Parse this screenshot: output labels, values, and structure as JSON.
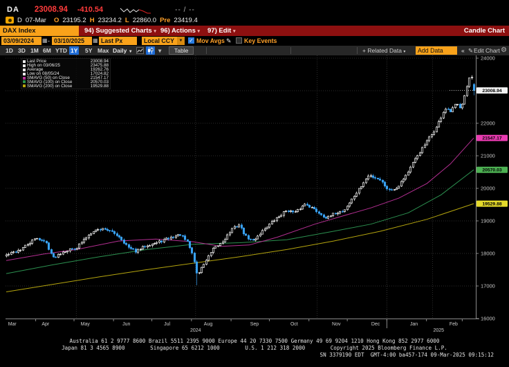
{
  "titlebar": {
    "ticker": "DA",
    "price": "23008.94",
    "change": "-410.54",
    "range": "-- / --"
  },
  "quote_line": {
    "session": "D",
    "date": "07-Mar",
    "open_label": "O",
    "open": "23195.2",
    "high_label": "H",
    "high": "23234.2",
    "low_label": "L",
    "low": "22860.0",
    "prev_label": "Pre",
    "prev": "23419.4"
  },
  "menu_bar": {
    "security": "DAX Index",
    "items": [
      {
        "label": "94) Suggested Charts"
      },
      {
        "label": "96) Actions"
      },
      {
        "label": "97) Edit"
      }
    ],
    "right_label": "Candle Chart"
  },
  "toolbar": {
    "date_from": "03/09/2024",
    "date_to": "03/10/2025",
    "price_field": "Last Px",
    "currency": "Local CCY",
    "mov_avgs_label": "Mov Avgs",
    "mov_avgs_checked": true,
    "key_events_label": "Key Events",
    "key_events_checked": false
  },
  "period_bar": {
    "tabs": [
      "1D",
      "3D",
      "1M",
      "6M",
      "YTD",
      "1Y",
      "5Y",
      "Max"
    ],
    "active_tab": "1Y",
    "frequency": "Daily",
    "table_label": "Table",
    "related_data_label": "+ Related Data",
    "add_data_value": "Add Data",
    "collapse_label": "«",
    "edit_chart_label": "Edit Chart"
  },
  "legend": {
    "rows": [
      {
        "label": "Last Price",
        "value": "23008.94",
        "color": "#e8e8e8"
      },
      {
        "label": "High on 03/06/25",
        "value": "23475.88",
        "color": "#e8e8e8"
      },
      {
        "label": "Average",
        "value": "19262.76",
        "color": "#e8e8e8"
      },
      {
        "label": "Low on 08/05/24",
        "value": "17024.82",
        "color": "#e8e8e8"
      },
      {
        "label": "SMAVG (50)  on Close",
        "value": "21547.17",
        "color": "#b52f93"
      },
      {
        "label": "SMAVG (100) on Close",
        "value": "20570.03",
        "color": "#2c9150"
      },
      {
        "label": "SMAVG (200) on Close",
        "value": "19529.88",
        "color": "#b5a50e"
      }
    ]
  },
  "chart_data": {
    "type": "candlestick",
    "security": "DAX Index",
    "date_range": [
      "03/09/2024",
      "03/10/2025"
    ],
    "frequency": "Daily",
    "stats": {
      "last_price": 23008.94,
      "change": -410.54,
      "high_date": "03/06/25",
      "high": 23475.88,
      "average": 19262.76,
      "low_date": "08/05/24",
      "low": 17024.82,
      "sma50": 21547.17,
      "sma100": 20570.03,
      "sma200": 19529.88,
      "open": 23195.2,
      "day_high": 23234.2,
      "day_low": 22860.0,
      "prev_close": 23419.4
    },
    "y_axis": {
      "min": 16000,
      "max": 24000,
      "step": 1000,
      "labels": [
        24000,
        23000,
        22000,
        21000,
        20000,
        19000,
        18000,
        17000,
        16000
      ]
    },
    "x_axis": {
      "months": [
        "Mar",
        "Apr",
        "May",
        "Jun",
        "Jul",
        "Aug",
        "Sep",
        "Oct",
        "Nov",
        "Dec",
        "Jan",
        "Feb"
      ],
      "month_label_t": [
        0.004,
        0.084,
        0.169,
        0.257,
        0.344,
        0.432,
        0.531,
        0.616,
        0.706,
        0.79,
        0.872,
        0.957
      ],
      "month_tick_t": [
        0.063,
        0.145,
        0.2295,
        0.3115,
        0.3962,
        0.4809,
        0.5628,
        0.6475,
        0.7295,
        0.8142,
        0.8989,
        0.9754
      ],
      "quarter_grid_t": [
        0.15,
        0.405,
        0.665,
        0.912
      ],
      "year_divider_t": 0.8142,
      "year_labels": [
        {
          "label": "2024",
          "t": 0.405
        },
        {
          "label": "2025",
          "t": 0.925
        }
      ]
    },
    "colors": {
      "up": "#ffffff",
      "down": "#38a1f2",
      "sma50": "#b52f93",
      "sma100": "#2c9150",
      "sma200": "#b5a50e",
      "badge_last": "#f2f2f2",
      "badge_sma50": "#e83bb0",
      "badge_sma100": "#4db153",
      "badge_sma200": "#e4d92b",
      "grid": "#2d2d2d",
      "axis": "#8a8a8a",
      "tick_text": "#c9c9c9"
    },
    "price_path": [
      [
        0,
        17950
      ],
      [
        0.03,
        18120
      ],
      [
        0.065,
        18480
      ],
      [
        0.085,
        18330
      ],
      [
        0.1,
        17860
      ],
      [
        0.12,
        18060
      ],
      [
        0.15,
        18180
      ],
      [
        0.185,
        18700
      ],
      [
        0.21,
        18770
      ],
      [
        0.24,
        18540
      ],
      [
        0.262,
        18160
      ],
      [
        0.278,
        18060
      ],
      [
        0.3,
        18260
      ],
      [
        0.322,
        18330
      ],
      [
        0.35,
        18480
      ],
      [
        0.372,
        18580
      ],
      [
        0.388,
        18320
      ],
      [
        0.4,
        17900
      ],
      [
        0.408,
        17320
      ],
      [
        0.422,
        17680
      ],
      [
        0.442,
        18120
      ],
      [
        0.462,
        18360
      ],
      [
        0.482,
        18740
      ],
      [
        0.497,
        18890
      ],
      [
        0.512,
        18520
      ],
      [
        0.527,
        18380
      ],
      [
        0.552,
        18760
      ],
      [
        0.578,
        19080
      ],
      [
        0.6,
        19340
      ],
      [
        0.617,
        19240
      ],
      [
        0.64,
        19540
      ],
      [
        0.665,
        19280
      ],
      [
        0.686,
        19080
      ],
      [
        0.703,
        19240
      ],
      [
        0.722,
        19320
      ],
      [
        0.748,
        19850
      ],
      [
        0.775,
        20400
      ],
      [
        0.798,
        20280
      ],
      [
        0.818,
        19940
      ],
      [
        0.835,
        20020
      ],
      [
        0.858,
        20480
      ],
      [
        0.878,
        20980
      ],
      [
        0.9,
        21450
      ],
      [
        0.92,
        21880
      ],
      [
        0.938,
        22450
      ],
      [
        0.95,
        22350
      ],
      [
        0.962,
        22600
      ],
      [
        0.972,
        22480
      ],
      [
        0.982,
        22980
      ],
      [
        0.99,
        23380
      ],
      [
        1,
        23050
      ]
    ],
    "sma50_path": [
      [
        0,
        17780
      ],
      [
        0.08,
        17980
      ],
      [
        0.15,
        18120
      ],
      [
        0.24,
        18380
      ],
      [
        0.32,
        18440
      ],
      [
        0.4,
        18360
      ],
      [
        0.46,
        18220
      ],
      [
        0.52,
        18260
      ],
      [
        0.58,
        18500
      ],
      [
        0.66,
        18900
      ],
      [
        0.72,
        19150
      ],
      [
        0.78,
        19400
      ],
      [
        0.84,
        19700
      ],
      [
        0.9,
        20150
      ],
      [
        0.95,
        20750
      ],
      [
        1,
        21547.17
      ]
    ],
    "sma100_path": [
      [
        0,
        17380
      ],
      [
        0.1,
        17650
      ],
      [
        0.2,
        17900
      ],
      [
        0.3,
        18120
      ],
      [
        0.4,
        18280
      ],
      [
        0.5,
        18330
      ],
      [
        0.6,
        18420
      ],
      [
        0.7,
        18680
      ],
      [
        0.78,
        18900
      ],
      [
        0.86,
        19250
      ],
      [
        0.93,
        19800
      ],
      [
        1,
        20570.03
      ]
    ],
    "sma200_path": [
      [
        0,
        16820
      ],
      [
        0.1,
        17050
      ],
      [
        0.2,
        17280
      ],
      [
        0.3,
        17500
      ],
      [
        0.4,
        17700
      ],
      [
        0.5,
        17900
      ],
      [
        0.6,
        18120
      ],
      [
        0.7,
        18380
      ],
      [
        0.8,
        18680
      ],
      [
        0.9,
        19050
      ],
      [
        1,
        19529.88
      ]
    ],
    "candle_count": 200,
    "key_candles": [
      {
        "i": 81,
        "low": 17024.82
      },
      {
        "i": 198,
        "close": 23419.4,
        "high": 23475.88
      },
      {
        "i": 199,
        "open": 23195.2,
        "high": 23234.2,
        "low": 22860.0,
        "close": 23008.94
      }
    ]
  },
  "footer": {
    "line1": "Australia 61 2 9777 8600 Brazil 5511 2395 9000 Europe 44 20 7330 7500 Germany 49 69 9204 1210 Hong Kong 852 2977 6000",
    "line2": "Japan 81 3 4565 8900        Singapore 65 6212 1000        U.S. 1 212 318 2000        Copyright 2025 Bloomberg Finance L.P.",
    "line3": "SN 3379190 EDT  GMT-4:00 ba457-174 09-Mar-2025 09:15:12"
  }
}
